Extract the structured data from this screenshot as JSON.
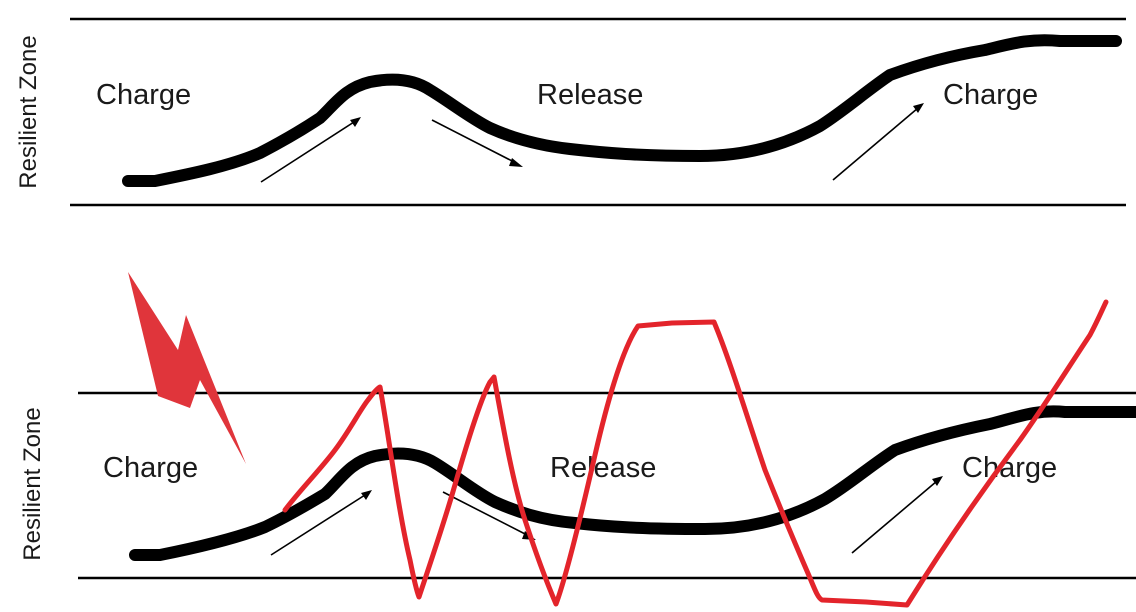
{
  "colors": {
    "line": "#000000",
    "disruption": "#e3242b",
    "lightning": "#e0353b"
  },
  "icons": {
    "lightning": "lightning-bolt-icon"
  },
  "top_panel": {
    "axis_label": "Resilient Zone",
    "label_left": "Charge",
    "label_middle": "Release",
    "label_right": "Charge"
  },
  "bottom_panel": {
    "axis_label": "Resilient Zone",
    "label_left": "Charge",
    "label_middle": "Release",
    "label_right": "Charge"
  }
}
